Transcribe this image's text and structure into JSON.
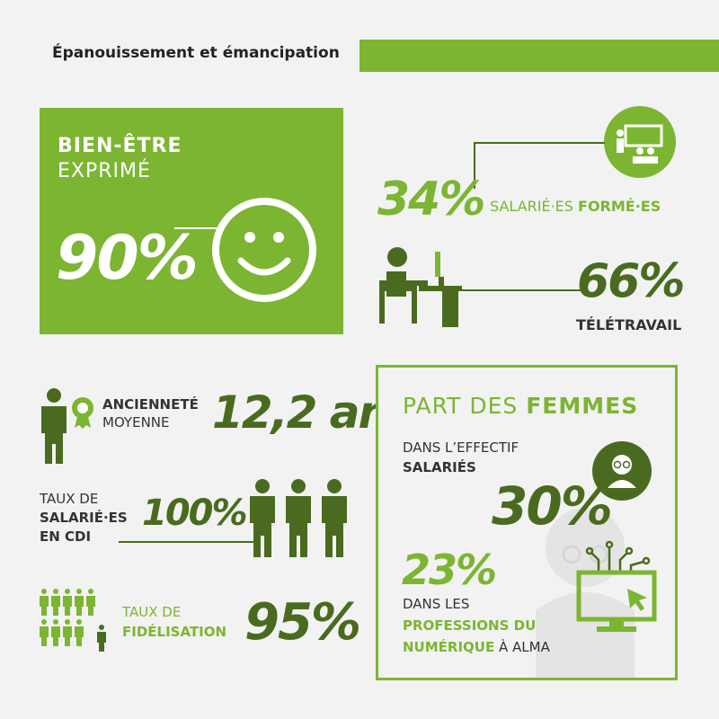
{
  "header": {
    "title": "Épanouissement et émancipation",
    "accent": "#7cb531"
  },
  "bien_etre": {
    "line1": "BIEN-ÊTRE",
    "line2": "EXPRIMÉ",
    "value": "90%",
    "icon": "smiley-icon"
  },
  "formes": {
    "value": "34%",
    "label_light": "SALARIÉ·ES ",
    "label_bold": "FORMÉ·ES",
    "icon": "training-icon"
  },
  "teletravail": {
    "value": "66%",
    "label": "TÉLÉTRAVAIL",
    "icon": "desk-worker-icon"
  },
  "anciennete": {
    "label_bold": "ANCIENNETÉ",
    "label_light": "MOYENNE",
    "value": "12,2 an",
    "icon": "person-award-icon"
  },
  "cdi": {
    "line1": "TAUX DE",
    "line2": "SALARIÉ·ES",
    "line3": "EN CDI",
    "value": "100%",
    "icon": "three-people-icon"
  },
  "fidelisation": {
    "line1": "TAUX DE",
    "line2": "FIDÉLISATION",
    "value": "95%",
    "icon": "crowd-icon"
  },
  "femmes": {
    "title_light": "PART DES ",
    "title_bold": "FEMMES",
    "effectif_line1": "DANS L’EFFECTIF",
    "effectif_line2": "SALARIÉS",
    "effectif_value": "30%",
    "num_value": "23%",
    "num_line1": "DANS LES",
    "num_line2": "PROFESSIONS DU",
    "num_line3_bold": "NUMÉRIQUE",
    "num_line3_light": " À ALMA",
    "icon_woman": "woman-icon",
    "icon_computer": "computer-circuit-icon"
  },
  "colors": {
    "primary": "#7cb531",
    "dark": "#4a6b1f",
    "text": "#3a3a3a"
  }
}
